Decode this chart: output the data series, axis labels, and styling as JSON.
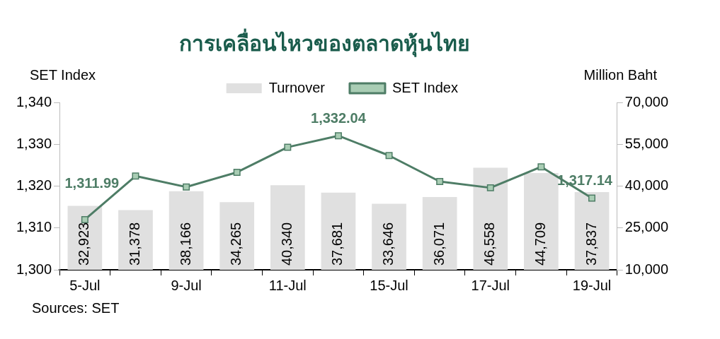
{
  "chart_data": {
    "type": "bar",
    "title": "การเคลื่อนไหวของตลาดหุ้นไทย",
    "ylabel": "SET Index",
    "y2label": "Million Baht",
    "categories": [
      "5-Jul",
      null,
      "9-Jul",
      null,
      "11-Jul",
      null,
      "15-Jul",
      null,
      "17-Jul",
      null,
      "19-Jul"
    ],
    "series": [
      {
        "name": "Turnover",
        "axis": "y2",
        "color": "#e0e0e0",
        "values": [
          32923,
          31378,
          38166,
          34265,
          40340,
          37681,
          33646,
          36071,
          46558,
          44709,
          37837
        ],
        "value_labels": [
          "32,923",
          "31,378",
          "38,166",
          "34,265",
          "40,340",
          "37,681",
          "33,646",
          "36,071",
          "46,558",
          "44,709",
          "37,837"
        ]
      },
      {
        "name": "SET Index",
        "type": "line",
        "axis": "y",
        "color": "#4e7d66",
        "marker": "square",
        "values": [
          1311.99,
          1322.4,
          1319.8,
          1323.3,
          1329.3,
          1332.04,
          1327.3,
          1321.1,
          1319.6,
          1324.6,
          1317.14
        ],
        "value_labels": [
          "1,311.99",
          null,
          null,
          null,
          null,
          "1,332.04",
          null,
          null,
          null,
          null,
          "1,317.14"
        ]
      }
    ],
    "ylim": [
      1300,
      1340
    ],
    "yticks": [
      {
        "value": 1300,
        "label": "1,300"
      },
      {
        "value": 1310,
        "label": "1,310"
      },
      {
        "value": 1320,
        "label": "1,320"
      },
      {
        "value": 1330,
        "label": "1,330"
      },
      {
        "value": 1340,
        "label": "1,340"
      }
    ],
    "y2lim": [
      10000,
      70000
    ],
    "y2ticks": [
      {
        "value": 10000,
        "label": "10,000"
      },
      {
        "value": 25000,
        "label": "25,000"
      },
      {
        "value": 40000,
        "label": "40,000"
      },
      {
        "value": 55000,
        "label": "55,000"
      },
      {
        "value": 70000,
        "label": "70,000"
      }
    ],
    "grid": false,
    "legend": "top",
    "annotations": [
      "Sources: SET"
    ]
  }
}
